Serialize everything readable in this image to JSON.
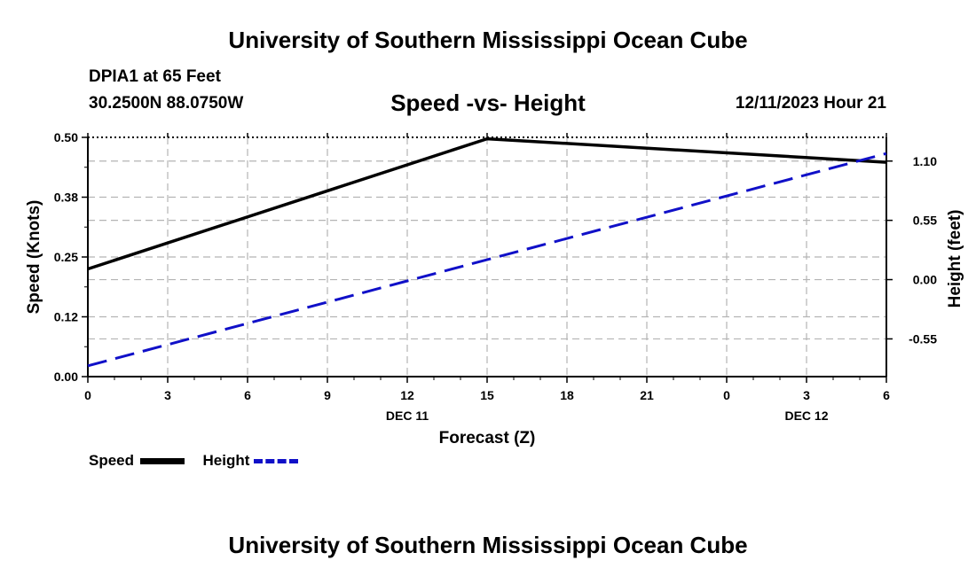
{
  "header": {
    "title": "University of Southern Mississippi Ocean Cube",
    "station": "DPIA1 at 65 Feet",
    "coords": "30.2500N  88.0750W",
    "subtitle": "Speed -vs- Height",
    "datetime": "12/11/2023 Hour 21"
  },
  "footer": {
    "title": "University of Southern Mississippi Ocean Cube"
  },
  "chart_data": {
    "type": "line",
    "title": "Speed -vs- Height",
    "xlabel": "Forecast (Z)",
    "ylabel": "Speed (Knots)",
    "y2label": "Height (feet)",
    "x_ticks": [
      "0",
      "3",
      "6",
      "9",
      "12",
      "15",
      "18",
      "21",
      "0",
      "3",
      "6"
    ],
    "x_date_labels": [
      {
        "index": 4,
        "label": "DEC 11"
      },
      {
        "index": 9,
        "label": "DEC 12"
      }
    ],
    "xlim": [
      0,
      30
    ],
    "ylim": [
      0,
      0.5
    ],
    "y_ticks": [
      "0.00",
      "0.12",
      "0.25",
      "0.38",
      "0.50"
    ],
    "y2lim": [
      -0.9,
      1.32
    ],
    "y2_ticks": [
      "-0.55",
      "0.00",
      "0.55",
      "1.10"
    ],
    "grid": true,
    "series": [
      {
        "name": "Speed",
        "axis": "left",
        "color": "#000000",
        "style": "solid",
        "x": [
          0,
          15,
          30
        ],
        "y": [
          0.225,
          0.497,
          0.448
        ]
      },
      {
        "name": "Height",
        "axis": "right",
        "color": "#1010c8",
        "style": "dashed",
        "x": [
          0,
          30
        ],
        "y": [
          -0.8,
          1.17
        ]
      }
    ],
    "legend": [
      {
        "label": "Speed",
        "color": "#000000",
        "style": "solid"
      },
      {
        "label": "Height",
        "color": "#1010c8",
        "style": "dashed"
      }
    ]
  }
}
